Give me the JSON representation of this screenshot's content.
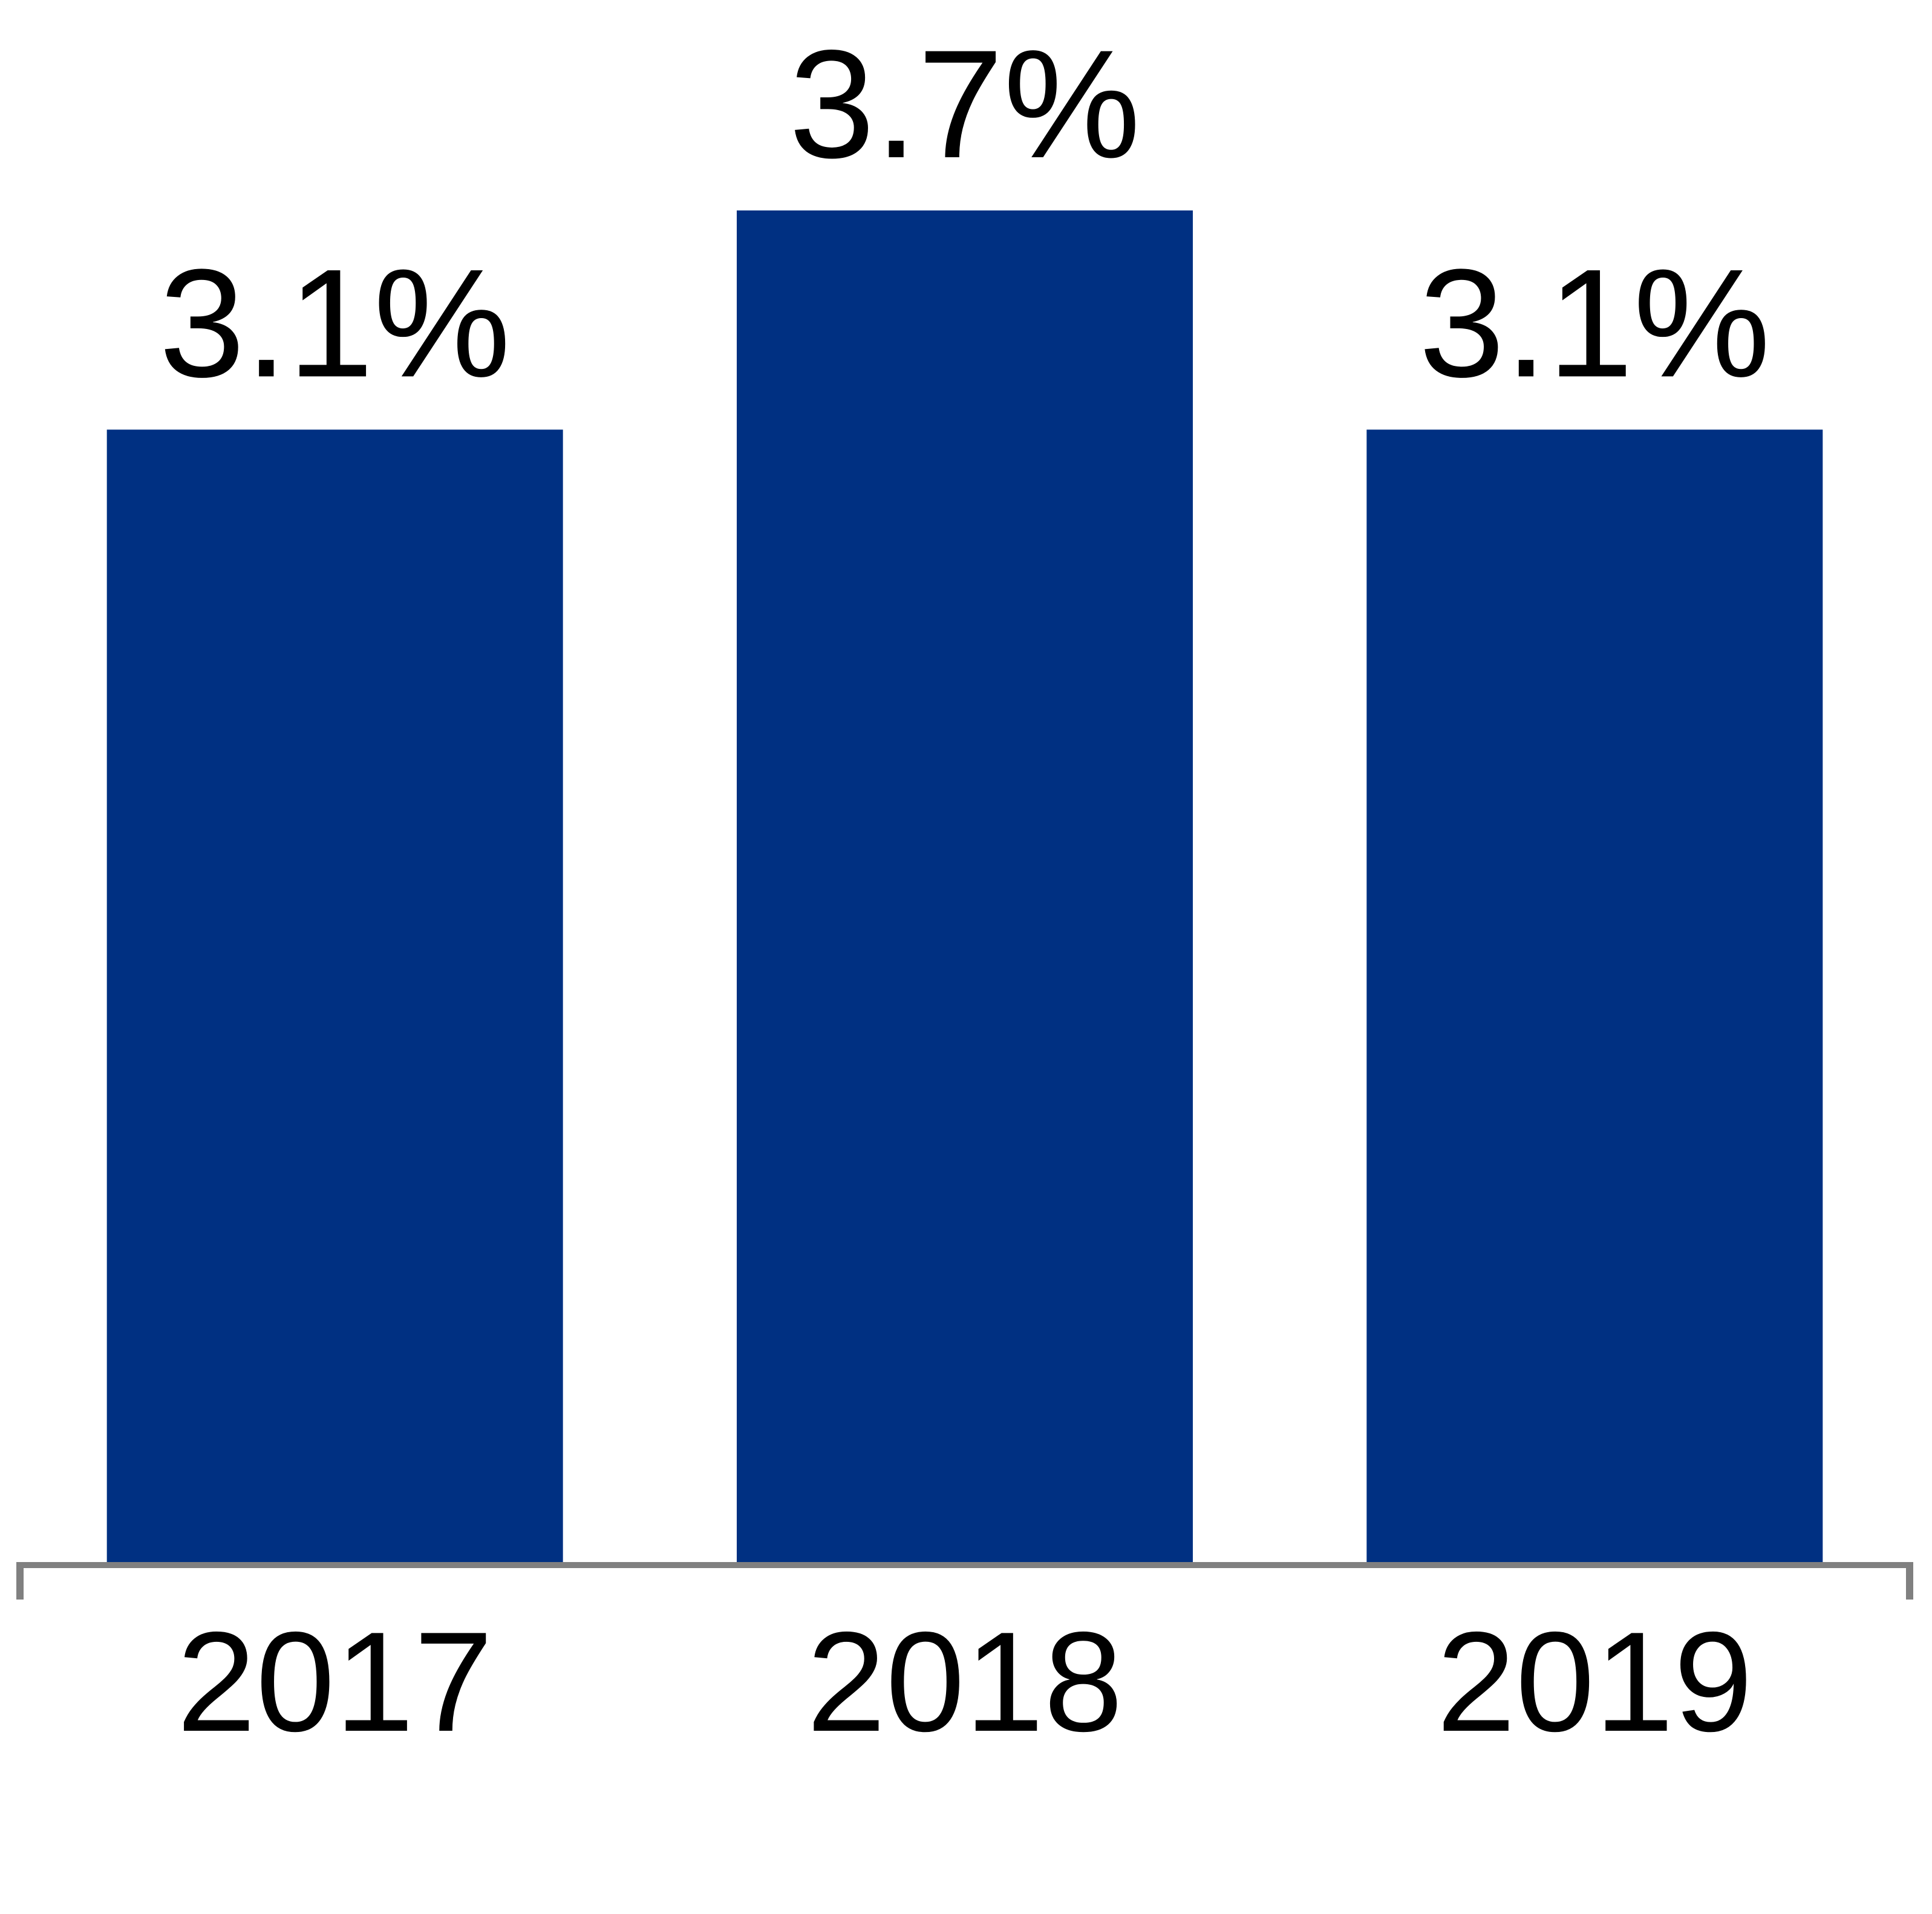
{
  "chart_data": {
    "type": "bar",
    "categories": [
      "2017",
      "2018",
      "2019"
    ],
    "values": [
      3.1,
      3.7,
      3.1
    ],
    "value_labels": [
      "3.1%",
      "3.7%",
      "3.1%"
    ],
    "color": "#003082"
  }
}
